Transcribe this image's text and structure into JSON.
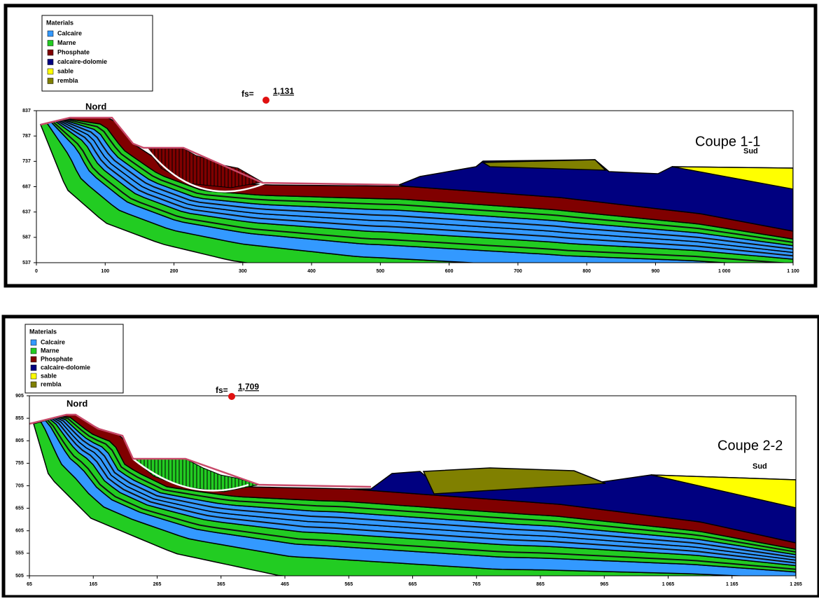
{
  "panels": [
    {
      "legend": {
        "title": "Materials",
        "items": [
          "Calcaire",
          "Marne",
          "Phosphate",
          "calcaire-dolomie",
          "sable",
          "rembla"
        ]
      },
      "fs_label": "fs=",
      "fs_value": "1,131",
      "north": "Nord",
      "section": "Coupe 1-1",
      "south": "Sud",
      "y_ticks": [
        "837",
        "787",
        "737",
        "687",
        "637",
        "587",
        "537"
      ],
      "x_ticks": [
        "0",
        "100",
        "200",
        "300",
        "400",
        "500",
        "600",
        "700",
        "800",
        "900",
        "1 000",
        "1 100"
      ]
    },
    {
      "legend": {
        "title": "Materials",
        "items": [
          "Calcaire",
          "Marne",
          "Phosphate",
          "calcaire-dolomie",
          "sable",
          "rembla"
        ]
      },
      "fs_label": "fs=",
      "fs_value": "1,709",
      "north": "Nord",
      "section": "Coupe 2-2",
      "south": "Sud",
      "y_ticks": [
        "905",
        "855",
        "805",
        "755",
        "705",
        "655",
        "605",
        "555",
        "505"
      ],
      "x_ticks": [
        "65",
        "165",
        "265",
        "365",
        "465",
        "565",
        "665",
        "765",
        "865",
        "965",
        "1 065",
        "1 165",
        "1 265"
      ]
    }
  ]
}
